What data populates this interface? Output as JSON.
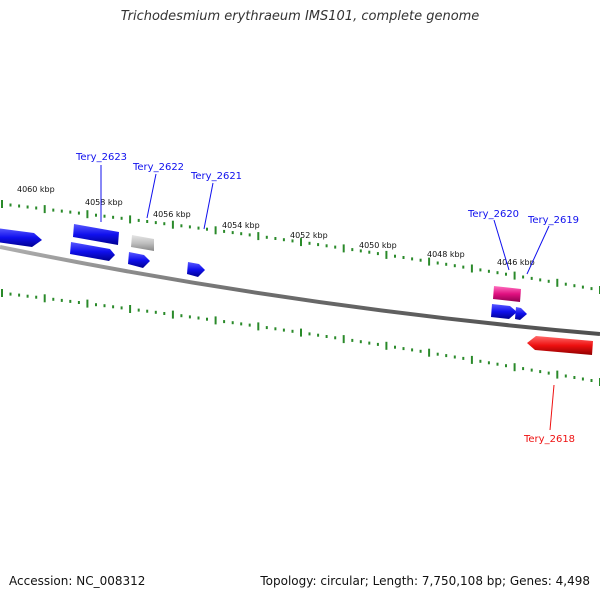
{
  "title": "Trichodesmium erythraeum IMS101, complete genome",
  "footer": {
    "accession": "Accession: NC_008312",
    "topology": "Topology: circular; Length: 7,750,108 bp; Genes: 4,498"
  },
  "colors": {
    "background": "#ffffff",
    "backbone": "#808080",
    "ticks": "#2a8a2a",
    "forward_gene": "#1010ee",
    "reverse_gene": "#ee1010",
    "pseudo_gene": "#c0c0c0",
    "rna_gene": "#e01080"
  },
  "scale_labels": [
    "4060 kbp",
    "4058 kbp",
    "4056 kbp",
    "4054 kbp",
    "4052 kbp",
    "4050 kbp",
    "4048 kbp",
    "4046 kbp"
  ],
  "genes": [
    {
      "locus": "Tery_2623",
      "strand": "forward",
      "type": "cds"
    },
    {
      "locus": "Tery_2622",
      "strand": "forward",
      "type": "pseudo"
    },
    {
      "locus": "Tery_2621",
      "strand": "forward",
      "type": "cds"
    },
    {
      "locus": "Tery_2620",
      "strand": "forward",
      "type": "rna"
    },
    {
      "locus": "Tery_2619",
      "strand": "forward",
      "type": "cds"
    },
    {
      "locus": "Tery_2618",
      "strand": "reverse",
      "type": "cds"
    }
  ]
}
